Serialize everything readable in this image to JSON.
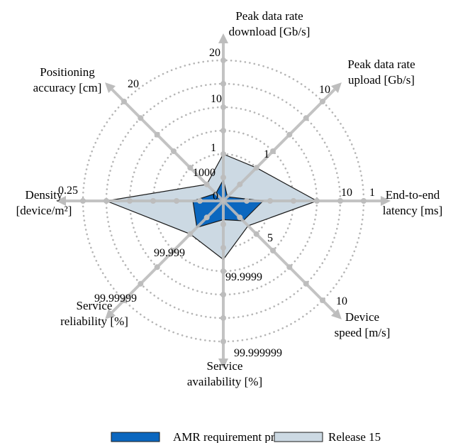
{
  "chart_data": {
    "type": "radar",
    "title": "",
    "grid": "dotted-circles",
    "legend_position": "bottom",
    "axes": [
      {
        "key": "peak_dl",
        "lines": [
          "Peak data rate",
          "download [Gb/s]"
        ],
        "ticks": [
          "1",
          "10",
          "20"
        ]
      },
      {
        "key": "peak_ul",
        "lines": [
          "Peak data rate",
          "upload [Gb/s]"
        ],
        "ticks": [
          "1",
          "10"
        ]
      },
      {
        "key": "latency",
        "lines": [
          "End-to-end",
          "latency [ms]"
        ],
        "ticks": [
          "10",
          "1"
        ]
      },
      {
        "key": "speed",
        "lines": [
          "Device",
          "speed [m/s]"
        ],
        "ticks": [
          "5",
          "10"
        ]
      },
      {
        "key": "availability",
        "lines": [
          "Service",
          "availability [%]"
        ],
        "ticks": [
          "99.9999",
          "99.999999"
        ]
      },
      {
        "key": "reliability",
        "lines": [
          "Service",
          "reliability [%]"
        ],
        "ticks": [
          "99.999",
          "99.99999"
        ]
      },
      {
        "key": "density",
        "lines": [
          "Density",
          "[device/m²]"
        ],
        "ticks": [
          "0.25"
        ]
      },
      {
        "key": "positioning",
        "lines": [
          "Positioning",
          "accuracy [cm]"
        ],
        "ticks": [
          "1000",
          "20"
        ]
      }
    ],
    "center_label": "0",
    "series": [
      {
        "name": "Release 15",
        "color": "#ccd9e3",
        "values_ring": [
          2,
          2,
          4,
          1.5,
          2.5,
          2,
          5,
          1
        ]
      },
      {
        "name": "AMR requirement profile",
        "color": "#0b67bf",
        "values_ring": [
          0.9,
          0.25,
          1.7,
          1.2,
          0.8,
          1.6,
          1.3,
          0.45
        ]
      }
    ]
  },
  "legend": [
    {
      "label": "AMR requirement profile",
      "color": "#0b67bf"
    },
    {
      "label": "Release 15",
      "color": "#ccd9e3"
    }
  ]
}
